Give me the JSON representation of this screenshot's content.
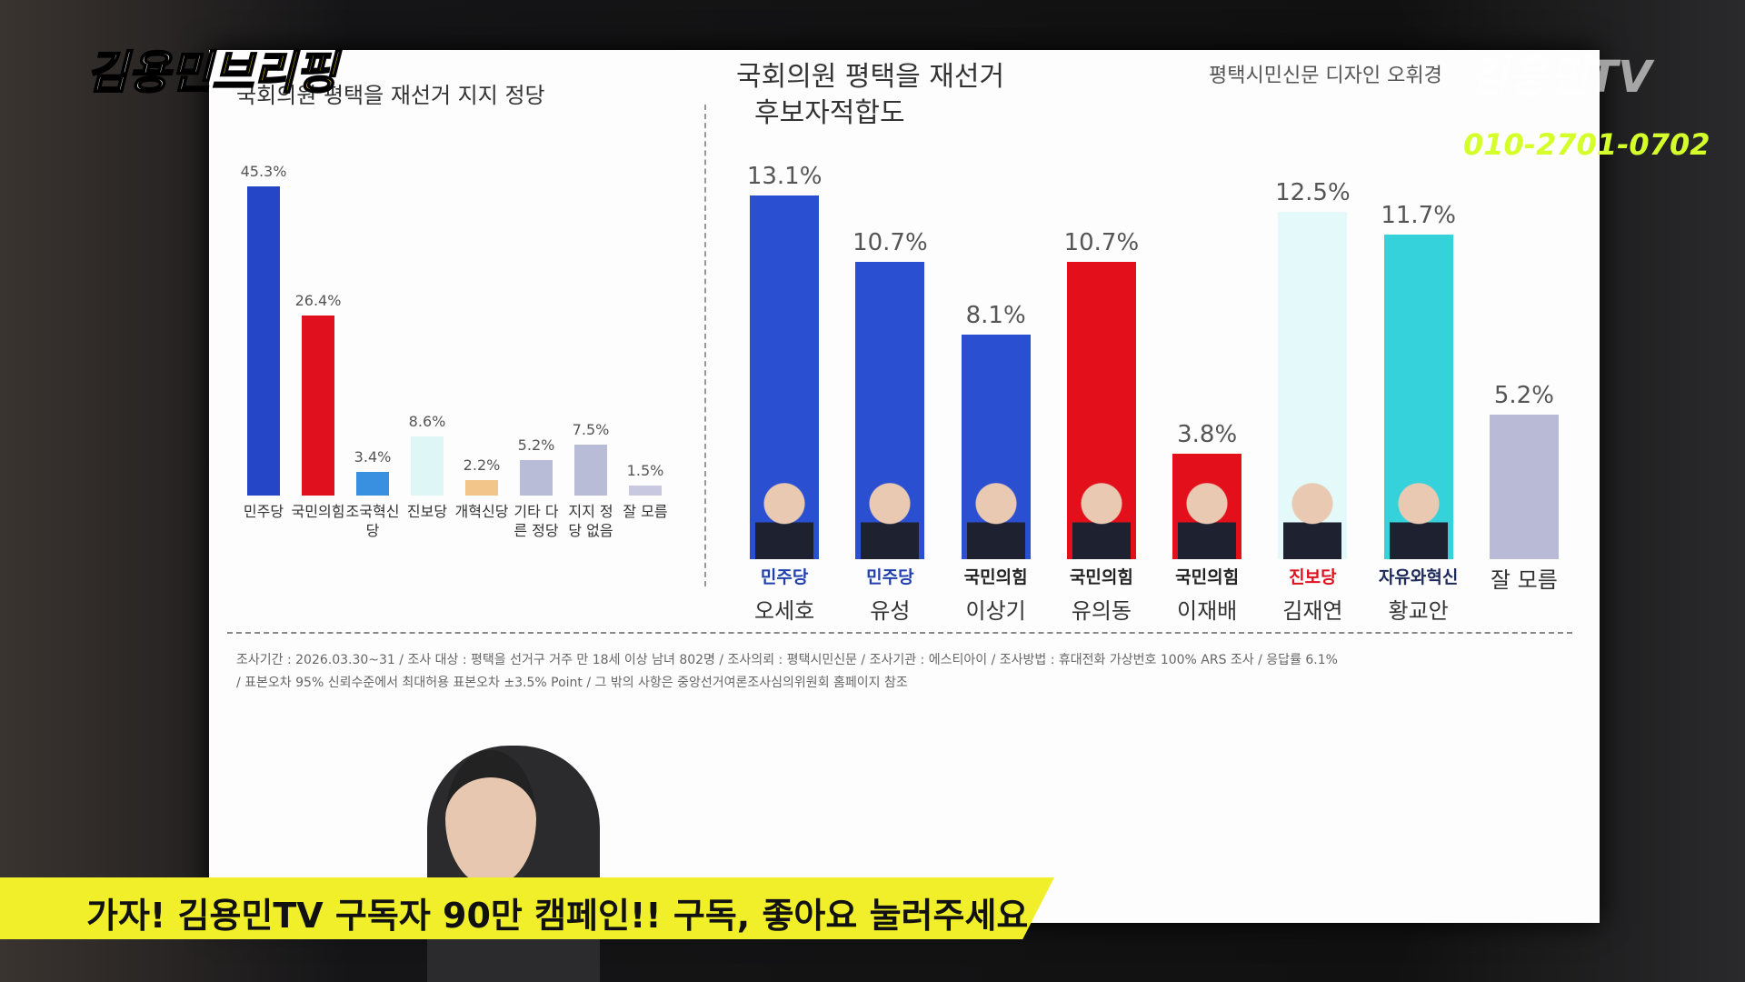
{
  "chart_data": [
    {
      "type": "bar",
      "title": [
        "국회의원 평택을 재선거 지지 정당"
      ],
      "categories": [
        "민주당",
        "국민의힘",
        "조국혁신당",
        "진보당",
        "개혁신당",
        "기타 다른 정당",
        "지지 정당 없음",
        "잘 모름"
      ],
      "values": [
        45.3,
        26.4,
        3.4,
        8.6,
        2.2,
        5.2,
        7.5,
        1.5
      ],
      "value_labels": [
        "45.3%",
        "26.4%",
        "3.4%",
        "8.6%",
        "2.2%",
        "5.2%",
        "7.5%",
        "1.5%"
      ],
      "colors": [
        "#2646c8",
        "#e0101e",
        "#3a90e0",
        "#dff6f6",
        "#f2c68a",
        "#b9bcd6",
        "#b9bcd6",
        "#c8c9e0"
      ]
    },
    {
      "type": "bar",
      "title": [
        "국회의원 평택을 재선거",
        "후보자적합도"
      ],
      "source": "평택시민신문 디자인 오휘경",
      "categories": [
        "오세호",
        "유성",
        "이상기",
        "유의동",
        "이재배",
        "김재연",
        "황교안",
        "잘 모름"
      ],
      "parties": [
        {
          "name": "민주당",
          "color": "#1f3fae"
        },
        {
          "name": "민주당",
          "color": "#1f3fae"
        },
        {
          "name": "국민의힘",
          "color": "#222"
        },
        {
          "name": "국민의힘",
          "color": "#222"
        },
        {
          "name": "국민의힘",
          "color": "#222"
        },
        {
          "name": "진보당",
          "color": "#e0101e"
        },
        {
          "name": "자유와혁신",
          "color": "#1d2a5a"
        },
        null
      ],
      "values": [
        13.1,
        10.7,
        8.1,
        10.7,
        3.8,
        12.5,
        11.7,
        5.2
      ],
      "value_labels": [
        "13.1%",
        "10.7%",
        "8.1%",
        "10.7%",
        "3.8%",
        "12.5%",
        "11.7%",
        "5.2%"
      ],
      "colors": [
        "#2a4fd0",
        "#2a4fd0",
        "#2a4fd0",
        "#e3101c",
        "#e3101c",
        "#e4fafa",
        "#36d2dc",
        "#b9bad6"
      ]
    }
  ],
  "footnotes": [
    "조사기간 : 2026.03.30~31 / 조사 대상 : 평택을 선거구 거주 만 18세 이상 남녀 802명 / 조사의뢰 : 평택시민신문 / 조사기관 : 에스티아이 / 조사방법 : 휴대전화 가상번호 100% ARS 조사 / 응답률 6.1%",
    "/ 표본오차 95% 신뢰수준에서 최대허용 표본오차 ±3.5% Point / 그 밖의 사항은 중앙선거여론조사심의위원회 홈페이지 참조"
  ],
  "overlay": {
    "logo_name": "김용민",
    "logo_show": "브리핑",
    "channel": "김용민TV",
    "phone": "010-2701-0702",
    "banner": "가자! 김용민TV 구독자 90만 캠페인!! 구독, 좋아요 눌러주세요"
  }
}
